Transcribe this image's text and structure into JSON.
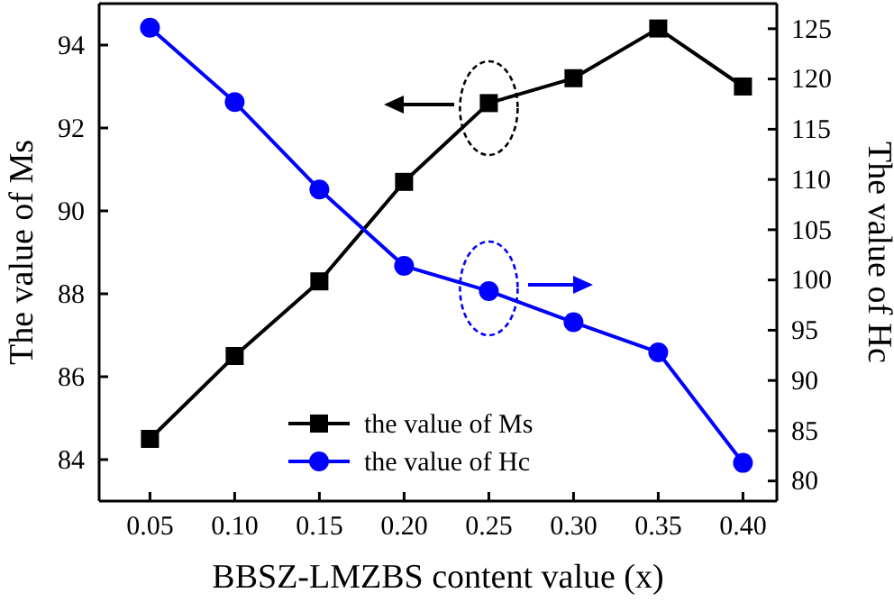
{
  "chart_data": {
    "type": "line",
    "x": [
      0.05,
      0.1,
      0.15,
      0.2,
      0.25,
      0.3,
      0.35,
      0.4
    ],
    "xlim": [
      0.02,
      0.42
    ],
    "xticks": [
      {
        "value": 0.05,
        "label": "0.05"
      },
      {
        "value": 0.1,
        "label": "0.10"
      },
      {
        "value": 0.15,
        "label": "0.15"
      },
      {
        "value": 0.2,
        "label": "0.20"
      },
      {
        "value": 0.25,
        "label": "0.25"
      },
      {
        "value": 0.3,
        "label": "0.30"
      },
      {
        "value": 0.35,
        "label": "0.35"
      },
      {
        "value": 0.4,
        "label": "0.40"
      }
    ],
    "ylim": [
      83,
      95
    ],
    "yticks": [
      84,
      86,
      88,
      90,
      92,
      94
    ],
    "y2lim": [
      78,
      127.5
    ],
    "y2ticks": [
      80,
      85,
      90,
      95,
      100,
      105,
      110,
      115,
      120,
      125
    ],
    "xlabel": "BBSZ-LMZBS content value (x)",
    "ylabel": "The value of Ms",
    "y2label": "The value of Hc",
    "series": [
      {
        "name": "the value of Ms",
        "color": "#000000",
        "marker": "square",
        "values": [
          84.5,
          86.5,
          88.3,
          90.7,
          92.6,
          93.2,
          94.4,
          93.0
        ]
      },
      {
        "name": "the value of Hc",
        "color": "#0000ff",
        "marker": "circle",
        "axis": "y2",
        "values": [
          125.1,
          117.7,
          109.0,
          101.4,
          98.9,
          95.8,
          92.8,
          81.8
        ]
      }
    ],
    "legend": "bottom",
    "grid": false,
    "line_style": "solid"
  }
}
